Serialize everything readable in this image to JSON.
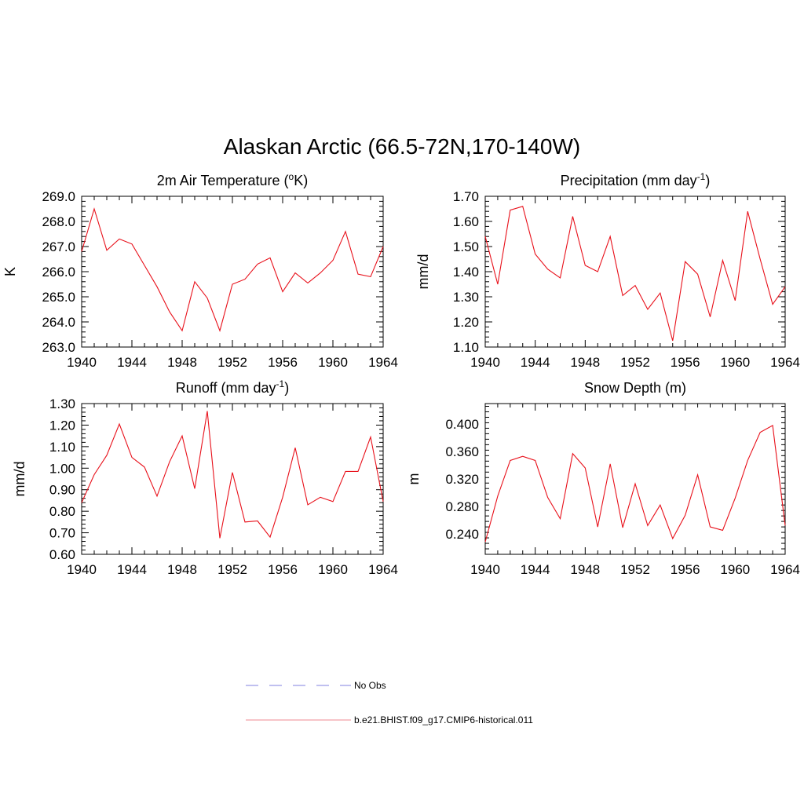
{
  "figure": {
    "title": "Alaskan Arctic (66.5-72N,170-140W)"
  },
  "colors": {
    "model": "#e8101a",
    "obs": "#9a9ae8",
    "model_legend": "#f2a0a6"
  },
  "legend": [
    {
      "name": "No Obs",
      "style": "dashed",
      "color": "#9a9ae8"
    },
    {
      "name": "b.e21.BHIST.f09_g17.CMIP6-historical.011",
      "style": "solid",
      "color": "#f2a0a6"
    }
  ],
  "chart_data": [
    {
      "type": "line",
      "title": "2m Air Temperature (",
      "title_sup": "o",
      "title_after": "K)",
      "xlabel": "",
      "ylabel": "K",
      "xlim": [
        1940,
        1964
      ],
      "ylim": [
        263.0,
        269.0
      ],
      "yticks": [
        "263.0",
        "264.0",
        "265.0",
        "266.0",
        "267.0",
        "268.0",
        "269.0"
      ],
      "xticks": [
        "1940",
        "1944",
        "1948",
        "1952",
        "1956",
        "1960",
        "1964"
      ],
      "grid": false,
      "series": [
        {
          "x": [
            1940,
            1941,
            1942,
            1943,
            1944,
            1945,
            1946,
            1947,
            1948,
            1949,
            1950,
            1951,
            1952,
            1953,
            1954,
            1955,
            1956,
            1957,
            1958,
            1959,
            1960,
            1961,
            1962,
            1963,
            1964
          ],
          "y": [
            266.8,
            268.5,
            266.85,
            267.3,
            267.1,
            266.25,
            265.4,
            264.4,
            263.65,
            265.6,
            264.95,
            263.65,
            265.5,
            265.7,
            266.3,
            266.55,
            265.2,
            265.95,
            265.55,
            265.95,
            266.45,
            267.6,
            265.9,
            265.8,
            267.0
          ]
        }
      ]
    },
    {
      "type": "line",
      "title": "Precipitation (mm day",
      "title_sup": "-1",
      "title_after": ")",
      "xlabel": "",
      "ylabel": "mm/d",
      "xlim": [
        1940,
        1964
      ],
      "ylim": [
        1.1,
        1.7
      ],
      "yticks": [
        "1.10",
        "1.20",
        "1.30",
        "1.40",
        "1.50",
        "1.60",
        "1.70"
      ],
      "xticks": [
        "1940",
        "1944",
        "1948",
        "1952",
        "1956",
        "1960",
        "1964"
      ],
      "grid": false,
      "series": [
        {
          "x": [
            1940,
            1941,
            1942,
            1943,
            1944,
            1945,
            1946,
            1947,
            1948,
            1949,
            1950,
            1951,
            1952,
            1953,
            1954,
            1955,
            1956,
            1957,
            1958,
            1959,
            1960,
            1961,
            1962,
            1963,
            1964
          ],
          "y": [
            1.54,
            1.35,
            1.645,
            1.66,
            1.47,
            1.41,
            1.375,
            1.62,
            1.425,
            1.4,
            1.54,
            1.305,
            1.345,
            1.25,
            1.315,
            1.125,
            1.44,
            1.39,
            1.22,
            1.445,
            1.285,
            1.64,
            1.45,
            1.27,
            1.34
          ]
        }
      ]
    },
    {
      "type": "line",
      "title": "Runoff (mm day",
      "title_sup": "-1",
      "title_after": ")",
      "xlabel": "",
      "ylabel": "mm/d",
      "xlim": [
        1940,
        1964
      ],
      "ylim": [
        0.6,
        1.3
      ],
      "yticks": [
        "0.60",
        "0.70",
        "0.80",
        "0.90",
        "1.00",
        "1.10",
        "1.20",
        "1.30"
      ],
      "xticks": [
        "1940",
        "1944",
        "1948",
        "1952",
        "1956",
        "1960",
        "1964"
      ],
      "grid": false,
      "series": [
        {
          "x": [
            1940,
            1941,
            1942,
            1943,
            1944,
            1945,
            1946,
            1947,
            1948,
            1949,
            1950,
            1951,
            1952,
            1953,
            1954,
            1955,
            1956,
            1957,
            1958,
            1959,
            1960,
            1961,
            1962,
            1963,
            1964
          ],
          "y": [
            0.84,
            0.97,
            1.06,
            1.205,
            1.05,
            1.005,
            0.87,
            1.03,
            1.15,
            0.905,
            1.265,
            0.675,
            0.98,
            0.75,
            0.755,
            0.68,
            0.865,
            1.095,
            0.83,
            0.865,
            0.845,
            0.985,
            0.985,
            1.145,
            0.845
          ]
        }
      ]
    },
    {
      "type": "line",
      "title": "Snow Depth (m)",
      "title_sup": "",
      "title_after": "",
      "xlabel": "",
      "ylabel": "m",
      "xlim": [
        1940,
        1964
      ],
      "ylim": [
        0.21,
        0.43
      ],
      "yticks": [
        "0.240",
        "0.280",
        "0.320",
        "0.360",
        "0.400"
      ],
      "ytick_values": [
        0.24,
        0.28,
        0.32,
        0.36,
        0.4
      ],
      "xticks": [
        "1940",
        "1944",
        "1948",
        "1952",
        "1956",
        "1960",
        "1964"
      ],
      "grid": false,
      "series": [
        {
          "x": [
            1940,
            1941,
            1942,
            1943,
            1944,
            1945,
            1946,
            1947,
            1948,
            1949,
            1950,
            1951,
            1952,
            1953,
            1954,
            1955,
            1956,
            1957,
            1958,
            1959,
            1960,
            1961,
            1962,
            1963,
            1964
          ],
          "y": [
            0.228,
            0.295,
            0.347,
            0.353,
            0.347,
            0.293,
            0.262,
            0.357,
            0.336,
            0.25,
            0.342,
            0.249,
            0.313,
            0.252,
            0.282,
            0.233,
            0.267,
            0.326,
            0.25,
            0.245,
            0.292,
            0.347,
            0.388,
            0.398,
            0.252
          ]
        }
      ]
    }
  ]
}
